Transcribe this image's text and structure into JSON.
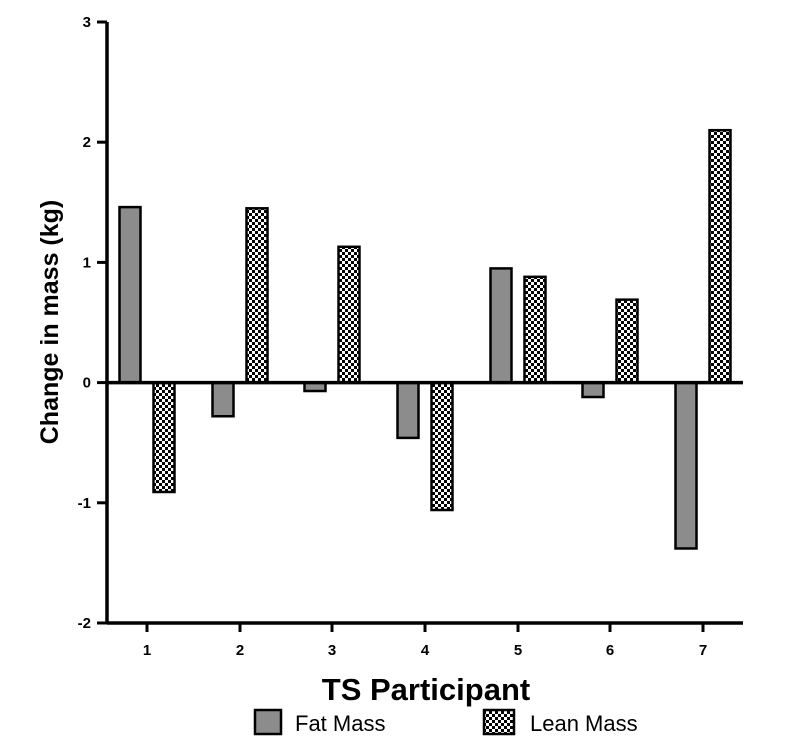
{
  "chart_data": {
    "type": "bar",
    "title": "",
    "xlabel": "TS Participant",
    "ylabel": "Change in mass (kg)",
    "ylim": [
      -2,
      3
    ],
    "yticks": [
      "3",
      "2",
      "1",
      "0",
      "-1",
      "-2"
    ],
    "categories": [
      "1",
      "2",
      "3",
      "4",
      "5",
      "6",
      "7"
    ],
    "series": [
      {
        "name": "Fat Mass",
        "style": "solid-gray",
        "color": "#8c8c8c",
        "values": [
          1.46,
          -0.28,
          -0.07,
          -0.46,
          0.95,
          -0.12,
          -1.38
        ]
      },
      {
        "name": "Lean Mass",
        "style": "checkered",
        "color": "#000000",
        "values": [
          -0.91,
          1.45,
          1.13,
          -1.06,
          0.88,
          0.69,
          2.1
        ]
      }
    ],
    "legend": {
      "placement": "bottom",
      "items": [
        {
          "label": "Fat Mass"
        },
        {
          "label": "Lean Mass"
        }
      ]
    },
    "grid": false
  }
}
